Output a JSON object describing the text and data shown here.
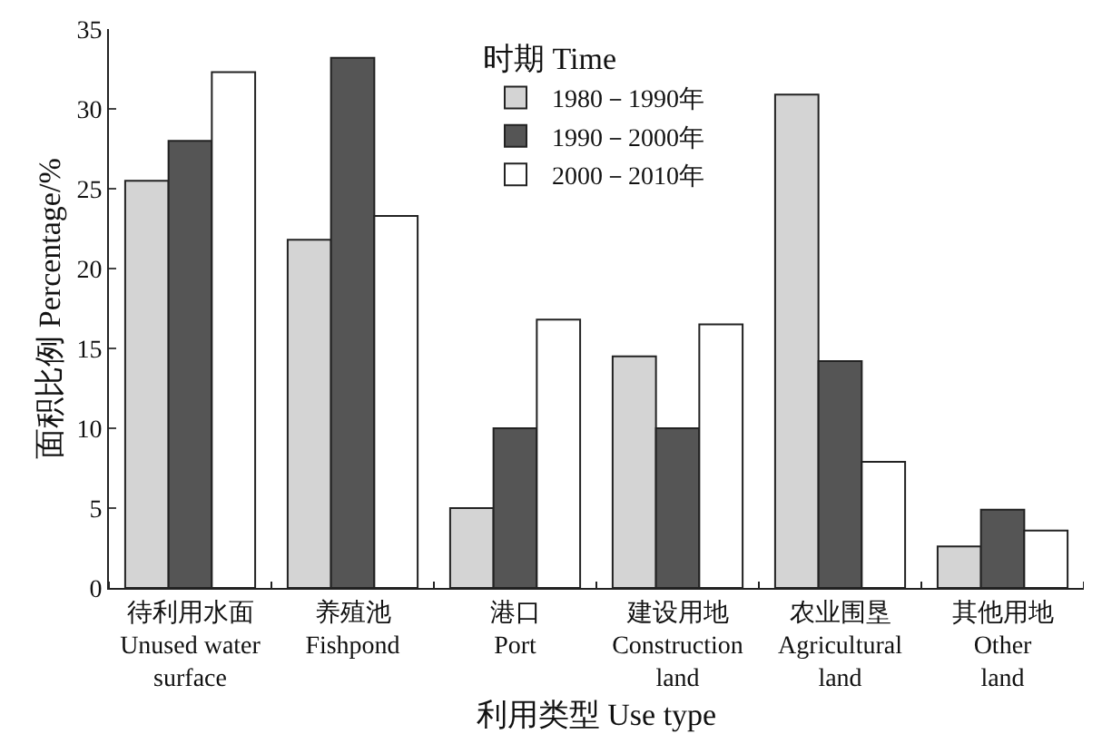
{
  "chart_data": {
    "type": "bar",
    "xlabel": "利用类型 Use type",
    "ylabel": "面积比例 Percentage/%",
    "legend_title": "时期 Time",
    "legend": "top",
    "categories": [
      "待利用水面\nUnused water\nsurface",
      "养殖池\nFishpond",
      "港口\nPort",
      "建设用地\nConstruction\nland",
      "农业围垦\nAgricultural\nland",
      "其他用地\nOther\nland"
    ],
    "ylim": [
      0,
      35
    ],
    "yticks": [
      0,
      5,
      10,
      15,
      20,
      25,
      30,
      35
    ],
    "series": [
      {
        "name": "1980－1990年",
        "color": "#d4d4d4",
        "values": [
          25.5,
          21.8,
          5,
          14.5,
          30.9,
          2.6
        ]
      },
      {
        "name": "1990－2000年",
        "color": "#555555",
        "values": [
          28,
          33.2,
          10,
          10,
          14.2,
          4.9
        ]
      },
      {
        "name": "2000－2010年",
        "color": "#ffffff",
        "values": [
          32.3,
          23.3,
          16.8,
          16.5,
          7.9,
          3.6
        ]
      }
    ]
  }
}
